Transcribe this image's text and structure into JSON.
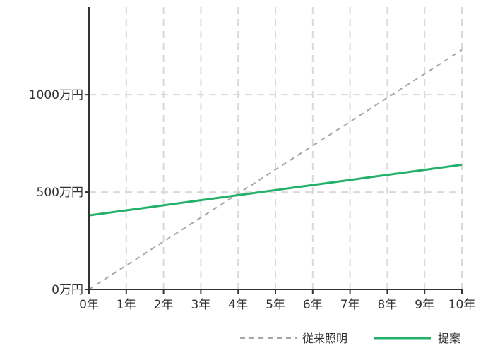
{
  "chart_data": {
    "type": "line",
    "title": "",
    "xlabel": "",
    "ylabel": "",
    "x": [
      0,
      1,
      2,
      3,
      4,
      5,
      6,
      7,
      8,
      9,
      10
    ],
    "x_tick_labels": [
      "0年",
      "1年",
      "2年",
      "3年",
      "4年",
      "5年",
      "6年",
      "7年",
      "8年",
      "9年",
      "10年"
    ],
    "y_ticks": [
      0,
      500,
      1000
    ],
    "y_tick_labels": [
      "0万円",
      "500万円",
      "1000万円"
    ],
    "xlim": [
      0,
      10
    ],
    "ylim": [
      0,
      1450
    ],
    "grid": true,
    "legend_position": "bottom-right",
    "series": [
      {
        "name": "従来照明",
        "style": "dashed",
        "color": "#a6a6a6",
        "values": [
          0,
          123,
          246,
          369,
          492,
          615,
          738,
          861,
          984,
          1107,
          1230
        ]
      },
      {
        "name": "提案",
        "style": "solid",
        "color": "#22b06a",
        "values": [
          380,
          406,
          432,
          458,
          484,
          510,
          536,
          562,
          588,
          614,
          640
        ]
      }
    ],
    "colors": {
      "grid": "#d9d9d9",
      "axis": "#333333",
      "text": "#333333"
    }
  }
}
